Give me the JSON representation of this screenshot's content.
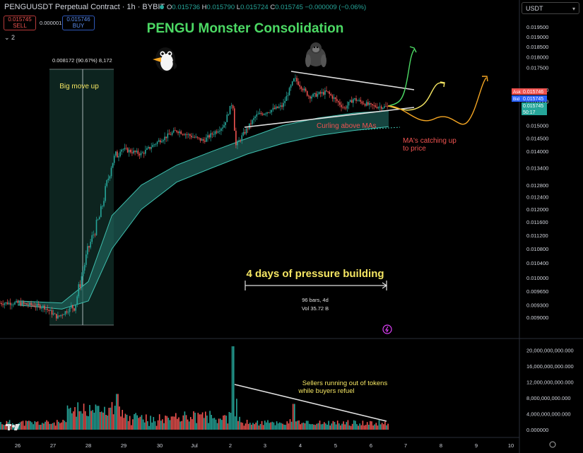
{
  "header": {
    "symbol": "PENGUUSDT Perpetual Contract · 1h · BYBIT",
    "ohlc": {
      "o_label": "O",
      "o": "0.015736",
      "h_label": "H",
      "h": "0.015790",
      "l_label": "L",
      "l": "0.015724",
      "c_label": "C",
      "c": "0.015745",
      "change": "−0.000009 (−0.06%)"
    },
    "sell_price": "0.015745",
    "sell_label": "SELL",
    "buy_price": "0.015746",
    "buy_label": "BUY",
    "spread": "0.000001",
    "indicator_count": "2",
    "currency": "USDT"
  },
  "colors": {
    "up": "#26a69a",
    "down": "#ef5350",
    "ribbon": "#1e5c55",
    "accent_green": "#4cd964",
    "yellow": "#f5e663",
    "orange": "#f5a623",
    "red_text": "#ef5350"
  },
  "price_panel": {
    "price_labels": {
      "ask_label": "Ask",
      "ask": "0.015746",
      "bid_label": "Bid",
      "bid": "0.015745",
      "last": "0.015745",
      "countdown": "50:17"
    }
  },
  "annotations": {
    "title": "PENGU Monster Consolidation",
    "big_move": "Big move up",
    "big_move_stats": "0.008172 (90.67%) 8,172",
    "curling": "Curling above MAs",
    "ma_catching_1": "MA's catching up",
    "ma_catching_2": "to price",
    "pressure": "4 days of pressure building",
    "range_bars": "96 bars, 4d",
    "range_vol": "Vol 35.72 B",
    "sellers_1": "Sellers running out of tokens",
    "sellers_2": "while buyers refuel",
    "penguin_icon": "penguin-emoji",
    "gorilla_icon": "gorilla-emoji",
    "tv_logo": "tradingview-logo"
  },
  "chart_data": [
    {
      "type": "candlestick",
      "title": "",
      "x_ticks": [
        "26",
        "27",
        "28",
        "29",
        "30",
        "Jul",
        "2",
        "3",
        "4",
        "5",
        "6",
        "7",
        "8",
        "9",
        "10"
      ],
      "y_ticks": [
        "0.019500",
        "0.019000",
        "0.018500",
        "0.018000",
        "0.017500",
        "0.016500",
        "0.016000",
        "0.015000",
        "0.014500",
        "0.014000",
        "0.013400",
        "0.012800",
        "0.012400",
        "0.012000",
        "0.011600",
        "0.011200",
        "0.010800",
        "0.010400",
        "0.010000",
        "0.009650",
        "0.009300",
        "0.009000"
      ],
      "ylim": [
        0.0088,
        0.0198
      ],
      "x_range": [
        "Jun 26",
        "Jul 10"
      ],
      "series": [
        {
          "name": "",
          "path": [
            {
              "t": "Jun 26 00:00",
              "p": 0.00935
            },
            {
              "t": "Jun 26 18:00",
              "p": 0.00925
            },
            {
              "t": "Jun 27 03:00",
              "p": 0.009
            },
            {
              "t": "Jun 27 15:00",
              "p": 0.0093
            },
            {
              "t": "Jun 28 00:00",
              "p": 0.0108
            },
            {
              "t": "Jun 28 08:00",
              "p": 0.0118
            },
            {
              "t": "Jun 28 16:00",
              "p": 0.0136
            },
            {
              "t": "Jun 28 22:00",
              "p": 0.0141
            },
            {
              "t": "Jun 29 12:00",
              "p": 0.0139
            },
            {
              "t": "Jun 30 00:00",
              "p": 0.0144
            },
            {
              "t": "Jun 30 12:00",
              "p": 0.0148
            },
            {
              "t": "Jul 1 06:00",
              "p": 0.0144
            },
            {
              "t": "Jul 1 20:00",
              "p": 0.015
            },
            {
              "t": "Jul 2 02:00",
              "p": 0.016
            },
            {
              "t": "Jul 2 04:00",
              "p": 0.0142
            },
            {
              "t": "Jul 2 18:00",
              "p": 0.0154
            },
            {
              "t": "Jul 3 12:00",
              "p": 0.0158
            },
            {
              "t": "Jul 3 20:00",
              "p": 0.017
            },
            {
              "t": "Jul 4 06:00",
              "p": 0.0162
            },
            {
              "t": "Jul 4 18:00",
              "p": 0.0164
            },
            {
              "t": "Jul 5 06:00",
              "p": 0.0157
            },
            {
              "t": "Jul 5 12:00",
              "p": 0.0161
            },
            {
              "t": "Jul 6 00:00",
              "p": 0.0158
            },
            {
              "t": "Jul 6 12:00",
              "p": 0.01575
            }
          ]
        }
      ],
      "moving_average_ribbon": [
        {
          "t": "Jun 26 00:00",
          "hi": 0.0094,
          "lo": 0.0093
        },
        {
          "t": "Jun 27 06:00",
          "hi": 0.00935,
          "lo": 0.0092
        },
        {
          "t": "Jun 28 00:00",
          "hi": 0.0099,
          "lo": 0.0094
        },
        {
          "t": "Jun 28 16:00",
          "hi": 0.0118,
          "lo": 0.0108
        },
        {
          "t": "Jun 29 12:00",
          "hi": 0.0128,
          "lo": 0.012
        },
        {
          "t": "Jun 30 12:00",
          "hi": 0.0135,
          "lo": 0.0129
        },
        {
          "t": "Jul 1 12:00",
          "hi": 0.014,
          "lo": 0.0134
        },
        {
          "t": "Jul 2 12:00",
          "hi": 0.0145,
          "lo": 0.0139
        },
        {
          "t": "Jul 3 12:00",
          "hi": 0.015,
          "lo": 0.0143
        },
        {
          "t": "Jul 4 12:00",
          "hi": 0.0153,
          "lo": 0.0146
        },
        {
          "t": "Jul 5 12:00",
          "hi": 0.0155,
          "lo": 0.0148
        },
        {
          "t": "Jul 6 12:00",
          "hi": 0.0156,
          "lo": 0.01495
        }
      ],
      "annotations": [
        "PENGU Monster Consolidation",
        "Big move up",
        "Curling above MAs",
        "MA's catching up to price",
        "4 days of pressure building"
      ]
    },
    {
      "type": "bar",
      "title": "",
      "series_name": "",
      "y_ticks": [
        "20,000,000,000.000",
        "16,000,000,000.000",
        "12,000,000,000.000",
        "8,000,000,000.000",
        "4,000,000,000.000",
        "0.000000"
      ],
      "ylim": [
        0,
        21000000000
      ],
      "peaks": [
        {
          "t": "Jun 28 06:00",
          "v": 6000000000
        },
        {
          "t": "Jun 28 20:00",
          "v": 9000000000
        },
        {
          "t": "Jul 2 02:00",
          "v": 21000000000
        },
        {
          "t": "Jul 3 20:00",
          "v": 6500000000
        },
        {
          "t": "Jul 6 12:00",
          "v": 1500000000
        }
      ],
      "annotations": [
        "Sellers running out of tokens while buyers refuel"
      ]
    }
  ]
}
